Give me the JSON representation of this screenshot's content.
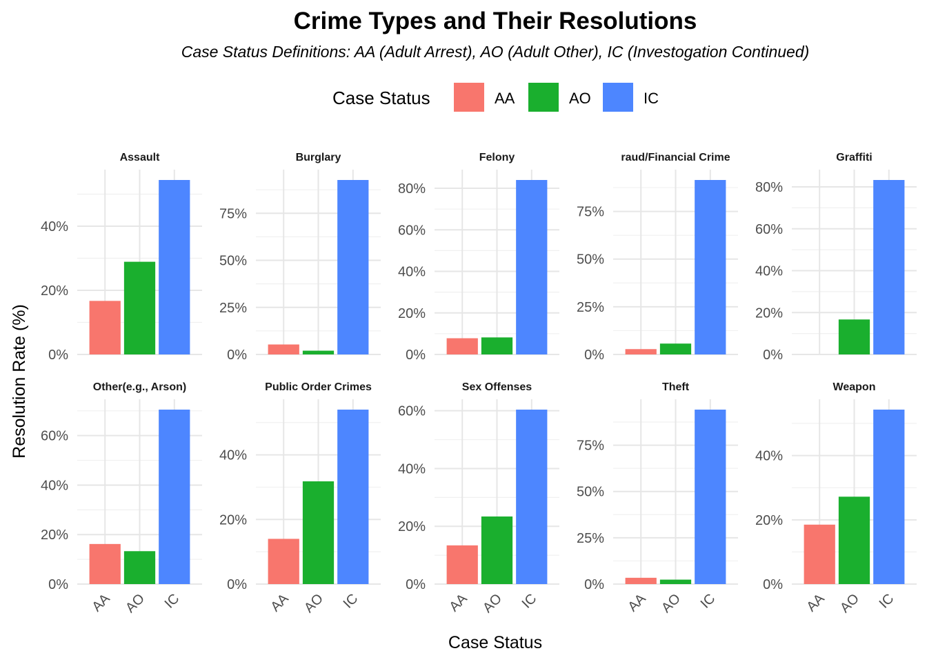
{
  "title": "Crime Types and Their Resolutions",
  "subtitle": "Case Status Definitions: AA (Adult Arrest), AO (Adult Other), IC (Investogation Continued)",
  "legend": {
    "title": "Case Status",
    "items": [
      {
        "label": "AA",
        "color": "#F8766D"
      },
      {
        "label": "AO",
        "color": "#1AAF2E"
      },
      {
        "label": "IC",
        "color": "#4D86FF"
      }
    ]
  },
  "chart_data": {
    "type": "bar",
    "xlabel": "Case Status",
    "ylabel": "Resolution Rate (%)",
    "categories": [
      "AA",
      "AO",
      "IC"
    ],
    "colors": [
      "#F8766D",
      "#1AAF2E",
      "#4D86FF"
    ],
    "legend_position": "top",
    "grid": true,
    "facets": [
      {
        "label": "Assault",
        "values": [
          16.7,
          28.9,
          54.4
        ],
        "ylim": [
          0,
          54.4
        ],
        "ticks": [
          0,
          20,
          40
        ],
        "tick_labels": [
          "0%",
          "20%",
          "40%"
        ]
      },
      {
        "label": "Burglary",
        "values": [
          5.3,
          2.0,
          92.7
        ],
        "ylim": [
          0,
          92.7
        ],
        "ticks": [
          0,
          25,
          50,
          75
        ],
        "tick_labels": [
          "0%",
          "25%",
          "50%",
          "75%"
        ]
      },
      {
        "label": "Felony",
        "values": [
          7.8,
          8.2,
          84.0
        ],
        "ylim": [
          0,
          84.0
        ],
        "ticks": [
          0,
          20,
          40,
          60,
          80
        ],
        "tick_labels": [
          "0%",
          "20%",
          "40%",
          "60%",
          "80%"
        ]
      },
      {
        "label": "raud/Financial Crime",
        "values": [
          2.8,
          5.7,
          91.5
        ],
        "ylim": [
          0,
          91.5
        ],
        "ticks": [
          0,
          25,
          50,
          75
        ],
        "tick_labels": [
          "0%",
          "25%",
          "50%",
          "75%"
        ]
      },
      {
        "label": "Graffiti",
        "values": [
          0,
          16.7,
          83.3
        ],
        "ylim": [
          0,
          83.3
        ],
        "ticks": [
          0,
          20,
          40,
          60,
          80
        ],
        "tick_labels": [
          "0%",
          "20%",
          "40%",
          "60%",
          "80%"
        ]
      },
      {
        "label": "Other(e.g., Arson)",
        "values": [
          16.2,
          13.3,
          70.5
        ],
        "ylim": [
          0,
          70.5
        ],
        "ticks": [
          0,
          20,
          40,
          60
        ],
        "tick_labels": [
          "0%",
          "20%",
          "40%",
          "60%"
        ]
      },
      {
        "label": "Public Order Crimes",
        "values": [
          14.0,
          31.8,
          54.0
        ],
        "ylim": [
          0,
          54.0
        ],
        "ticks": [
          0,
          20,
          40
        ],
        "tick_labels": [
          "0%",
          "20%",
          "40%"
        ]
      },
      {
        "label": "Sex Offenses",
        "values": [
          13.4,
          23.4,
          60.4
        ],
        "ylim": [
          0,
          60.4
        ],
        "ticks": [
          0,
          20,
          40,
          60
        ],
        "tick_labels": [
          "0%",
          "20%",
          "40%",
          "60%"
        ]
      },
      {
        "label": "Theft",
        "values": [
          3.4,
          2.4,
          94.2
        ],
        "ylim": [
          0,
          94.2
        ],
        "ticks": [
          0,
          25,
          50,
          75
        ],
        "tick_labels": [
          "0%",
          "25%",
          "50%",
          "75%"
        ]
      },
      {
        "label": "Weapon",
        "values": [
          18.5,
          27.2,
          54.3
        ],
        "ylim": [
          0,
          54.3
        ],
        "ticks": [
          0,
          20,
          40
        ],
        "tick_labels": [
          "0%",
          "20%",
          "40%"
        ]
      }
    ]
  }
}
